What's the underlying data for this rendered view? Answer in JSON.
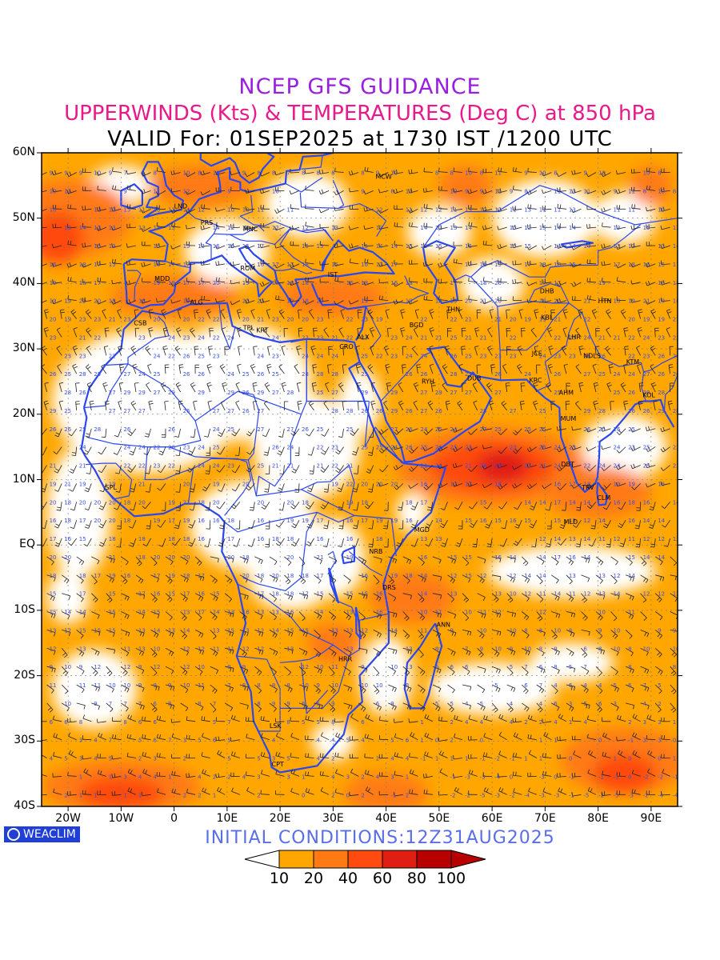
{
  "header": {
    "title": "NCEP GFS GUIDANCE",
    "subtitle": "UPPERWINDS (Kts) & TEMPERATURES (Deg C) at 850 hPa",
    "valid": "VALID For: 01SEP2025 at 1730 IST /1200 UTC"
  },
  "lat_labels": [
    "60N",
    "50N",
    "40N",
    "30N",
    "20N",
    "10N",
    "EQ",
    "10S",
    "20S",
    "30S",
    "40S"
  ],
  "lon_labels": [
    "20W",
    "10W",
    "0",
    "10E",
    "20E",
    "30E",
    "40E",
    "50E",
    "60E",
    "70E",
    "80E",
    "90E"
  ],
  "footer": {
    "logo_text": "WEACLIM",
    "initial": "INITIAL CONDITIONS:12Z31AUG2025"
  },
  "legend": {
    "labels": [
      "10",
      "20",
      "40",
      "60",
      "80",
      "100"
    ],
    "colors": [
      "#ffffff",
      "#ffa600",
      "#ff7a12",
      "#ff4a10",
      "#e01f14",
      "#b80000"
    ]
  },
  "cities": [
    {
      "code": "MCW",
      "lon": 38,
      "lat": 56
    },
    {
      "code": "LND",
      "lon": 0,
      "lat": 51.5
    },
    {
      "code": "PRS",
      "lon": 5,
      "lat": 49
    },
    {
      "code": "MNC",
      "lon": 13,
      "lat": 48
    },
    {
      "code": "ROM",
      "lon": 12.5,
      "lat": 42
    },
    {
      "code": "IST",
      "lon": 29,
      "lat": 41
    },
    {
      "code": "MDD",
      "lon": -3.7,
      "lat": 40.4
    },
    {
      "code": "ALG",
      "lon": 3,
      "lat": 36.8
    },
    {
      "code": "CSB",
      "lon": -7.6,
      "lat": 33.6
    },
    {
      "code": "TPL",
      "lon": 13,
      "lat": 32.9
    },
    {
      "code": "KRT",
      "lon": 15.5,
      "lat": 32.5
    },
    {
      "code": "CRO",
      "lon": 31.2,
      "lat": 30
    },
    {
      "code": "ALX",
      "lon": 34.5,
      "lat": 31.5
    },
    {
      "code": "BGD",
      "lon": 44.4,
      "lat": 33.3
    },
    {
      "code": "THN",
      "lon": 51.4,
      "lat": 35.7
    },
    {
      "code": "DHB",
      "lon": 69,
      "lat": 38.5
    },
    {
      "code": "KBL",
      "lon": 69.2,
      "lat": 34.5
    },
    {
      "code": "HTN",
      "lon": 80,
      "lat": 37
    },
    {
      "code": "LHR",
      "lon": 74.3,
      "lat": 31.5
    },
    {
      "code": "NDLS",
      "lon": 77.2,
      "lat": 28.6
    },
    {
      "code": "JCE",
      "lon": 67.5,
      "lat": 29
    },
    {
      "code": "KTM",
      "lon": 85.3,
      "lat": 27.7
    },
    {
      "code": "RYH",
      "lon": 46.7,
      "lat": 24.7
    },
    {
      "code": "DUB",
      "lon": 55.3,
      "lat": 25.2
    },
    {
      "code": "KRC",
      "lon": 67,
      "lat": 24.9
    },
    {
      "code": "AHM",
      "lon": 72.6,
      "lat": 23
    },
    {
      "code": "KOL",
      "lon": 88.4,
      "lat": 22.6
    },
    {
      "code": "MUM",
      "lon": 72.9,
      "lat": 19
    },
    {
      "code": "SPL",
      "lon": -13,
      "lat": 8.5
    },
    {
      "code": "DBT",
      "lon": 73,
      "lat": 12
    },
    {
      "code": "TRV",
      "lon": 76.9,
      "lat": 8.5
    },
    {
      "code": "CLM",
      "lon": 79.8,
      "lat": 6.9
    },
    {
      "code": "MGD",
      "lon": 45.3,
      "lat": 2
    },
    {
      "code": "MLD",
      "lon": 73.5,
      "lat": 3.2
    },
    {
      "code": "NRB",
      "lon": 36.8,
      "lat": -1.3
    },
    {
      "code": "DRS",
      "lon": 39.3,
      "lat": -6.8
    },
    {
      "code": "ANN",
      "lon": 49.5,
      "lat": -12.5
    },
    {
      "code": "HRR",
      "lon": 31,
      "lat": -17.8
    },
    {
      "code": "LSK",
      "lon": 18,
      "lat": -28
    },
    {
      "code": "CPT",
      "lon": 18.4,
      "lat": -33.9
    }
  ]
}
